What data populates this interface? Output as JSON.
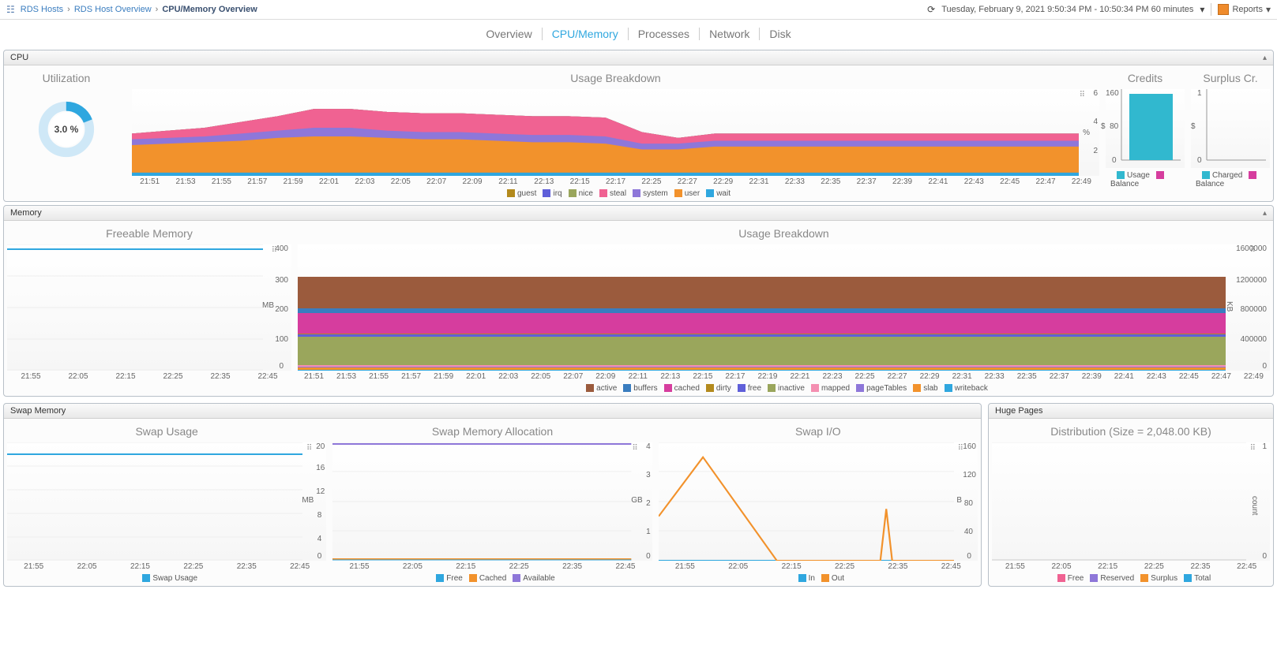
{
  "breadcrumbs": {
    "items": [
      {
        "label": "RDS Hosts",
        "link": true
      },
      {
        "label": "RDS Host Overview",
        "link": true
      },
      {
        "label": "CPU/Memory Overview",
        "link": false,
        "current": true
      }
    ]
  },
  "time_range": {
    "text": "Tuesday, February 9, 2021 9:50:34 PM - 10:50:34 PM 60 minutes"
  },
  "reports_label": "Reports",
  "tabs": [
    "Overview",
    "CPU/Memory",
    "Processes",
    "Network",
    "Disk"
  ],
  "active_tab": "CPU/Memory",
  "cpu": {
    "panel_title": "CPU",
    "utilization_label": "Utilization",
    "utilization_pct": "3.0 %",
    "usage_title": "Usage Breakdown",
    "usage_x_ticks": [
      "21:51",
      "21:53",
      "21:55",
      "21:57",
      "21:59",
      "22:01",
      "22:03",
      "22:05",
      "22:07",
      "22:09",
      "22:11",
      "22:13",
      "22:15",
      "22:17",
      "22:25",
      "22:27",
      "22:29",
      "22:31",
      "22:33",
      "22:35",
      "22:37",
      "22:39",
      "22:41",
      "22:43",
      "22:45",
      "22:47",
      "22:49"
    ],
    "usage_y_ticks": [
      0,
      2,
      4,
      6
    ],
    "usage_y_unit": "%",
    "usage_series": [
      {
        "name": "guest",
        "color": "#b38a1d",
        "values": [
          0,
          0,
          0,
          0,
          0,
          0,
          0,
          0,
          0,
          0,
          0,
          0,
          0,
          0,
          0,
          0,
          0,
          0,
          0,
          0,
          0,
          0,
          0,
          0,
          0,
          0,
          0
        ]
      },
      {
        "name": "irq",
        "color": "#5f5fd9",
        "values": [
          0,
          0,
          0,
          0,
          0,
          0,
          0,
          0,
          0,
          0,
          0,
          0,
          0,
          0,
          0,
          0,
          0,
          0,
          0,
          0,
          0,
          0,
          0,
          0,
          0,
          0,
          0
        ]
      },
      {
        "name": "nice",
        "color": "#9aa65c",
        "values": [
          0,
          0,
          0,
          0,
          0,
          0,
          0,
          0,
          0,
          0,
          0,
          0,
          0,
          0,
          0,
          0,
          0,
          0,
          0,
          0,
          0,
          0,
          0,
          0,
          0,
          0,
          0
        ]
      },
      {
        "name": "steal",
        "color": "#f06292",
        "values": [
          0.4,
          0.5,
          0.6,
          0.8,
          1.0,
          1.3,
          1.3,
          1.3,
          1.3,
          1.3,
          1.3,
          1.3,
          1.3,
          1.3,
          0.8,
          0.4,
          0.5,
          0.5,
          0.5,
          0.5,
          0.5,
          0.5,
          0.5,
          0.5,
          0.5,
          0.5,
          0.5
        ]
      },
      {
        "name": "system",
        "color": "#8e77d9",
        "values": [
          0.4,
          0.4,
          0.4,
          0.5,
          0.5,
          0.6,
          0.6,
          0.5,
          0.5,
          0.5,
          0.5,
          0.5,
          0.5,
          0.5,
          0.4,
          0.4,
          0.4,
          0.4,
          0.4,
          0.4,
          0.4,
          0.4,
          0.4,
          0.4,
          0.4,
          0.4,
          0.4
        ]
      },
      {
        "name": "user",
        "color": "#f2922c",
        "values": [
          1.9,
          2.0,
          2.1,
          2.2,
          2.4,
          2.5,
          2.5,
          2.4,
          2.3,
          2.3,
          2.2,
          2.1,
          2.1,
          2.0,
          1.6,
          1.6,
          1.8,
          1.8,
          1.8,
          1.8,
          1.8,
          1.8,
          1.8,
          1.8,
          1.8,
          1.8,
          1.8
        ]
      },
      {
        "name": "wait",
        "color": "#2fa7df",
        "values": [
          0.2,
          0.2,
          0.2,
          0.2,
          0.2,
          0.2,
          0.2,
          0.2,
          0.2,
          0.2,
          0.2,
          0.2,
          0.2,
          0.2,
          0.2,
          0.2,
          0.2,
          0.2,
          0.2,
          0.2,
          0.2,
          0.2,
          0.2,
          0.2,
          0.2,
          0.2,
          0.2
        ]
      }
    ],
    "credits": {
      "title": "Credits",
      "y_unit": "$",
      "y_ticks": [
        0,
        80,
        160
      ],
      "bars": [
        {
          "label": "Usage",
          "color": "#31b8cf",
          "value": 150
        }
      ],
      "legend": [
        {
          "label": "Usage",
          "color": "#31b8cf"
        },
        {
          "label": "Balance",
          "color": "#d63d9e"
        }
      ]
    },
    "surplus": {
      "title": "Surplus Cr.",
      "y_unit": "$",
      "y_ticks": [
        0,
        1
      ],
      "legend": [
        {
          "label": "Charged",
          "color": "#31b8cf"
        },
        {
          "label": "Balance",
          "color": "#d63d9e"
        }
      ]
    }
  },
  "memory": {
    "panel_title": "Memory",
    "free": {
      "title": "Freeable Memory",
      "y_ticks": [
        0,
        100,
        200,
        300,
        400
      ],
      "y_unit": "MB",
      "x_ticks": [
        "21:55",
        "22:05",
        "22:15",
        "22:25",
        "22:35",
        "22:45"
      ],
      "value": 385,
      "color": "#2fa7df"
    },
    "usage": {
      "title": "Usage Breakdown",
      "y_ticks": [
        0,
        400000,
        800000,
        1200000,
        1600000
      ],
      "y_unit": "KB",
      "x_ticks": [
        "21:51",
        "21:53",
        "21:55",
        "21:57",
        "21:59",
        "22:01",
        "22:03",
        "22:05",
        "22:07",
        "22:09",
        "22:11",
        "22:13",
        "22:15",
        "22:17",
        "22:19",
        "22:21",
        "22:23",
        "22:25",
        "22:27",
        "22:29",
        "22:31",
        "22:33",
        "22:35",
        "22:37",
        "22:39",
        "22:41",
        "22:43",
        "22:45",
        "22:47",
        "22:49"
      ],
      "series": [
        {
          "name": "active",
          "color": "#9b5b3d",
          "value": 400000
        },
        {
          "name": "buffers",
          "color": "#3a7dbf",
          "value": 60000
        },
        {
          "name": "cached",
          "color": "#d63d9e",
          "value": 260000
        },
        {
          "name": "dirty",
          "color": "#b38a1d",
          "value": 10000
        },
        {
          "name": "free",
          "color": "#5f5fd9",
          "value": 30000
        },
        {
          "name": "inactive",
          "color": "#9aa65c",
          "value": 360000
        },
        {
          "name": "mapped",
          "color": "#f48fb1",
          "value": 20000
        },
        {
          "name": "pageTables",
          "color": "#8e77d9",
          "value": 10000
        },
        {
          "name": "slab",
          "color": "#f2922c",
          "value": 30000
        },
        {
          "name": "writeback",
          "color": "#2fa7df",
          "value": 10000
        }
      ]
    }
  },
  "swap": {
    "panel_title": "Swap Memory",
    "usage": {
      "title": "Swap Usage",
      "y_ticks": [
        0,
        4,
        8,
        12,
        16,
        20
      ],
      "y_unit": "MB",
      "x_ticks": [
        "21:55",
        "22:05",
        "22:15",
        "22:25",
        "22:35",
        "22:45"
      ],
      "value": 18,
      "color": "#2fa7df",
      "legend": [
        {
          "label": "Swap Usage",
          "color": "#2fa7df"
        }
      ]
    },
    "alloc": {
      "title": "Swap Memory Allocation",
      "y_ticks": [
        0,
        1,
        2,
        3,
        4
      ],
      "y_unit": "GB",
      "x_ticks": [
        "21:55",
        "22:05",
        "22:15",
        "22:25",
        "22:35",
        "22:45"
      ],
      "series": [
        {
          "name": "Free",
          "color": "#2fa7df",
          "value": 0
        },
        {
          "name": "Cached",
          "color": "#f2922c",
          "value": 0
        },
        {
          "name": "Available",
          "color": "#8e77d9",
          "value": 4
        }
      ],
      "legend": [
        {
          "label": "Free",
          "color": "#2fa7df"
        },
        {
          "label": "Cached",
          "color": "#f2922c"
        },
        {
          "label": "Available",
          "color": "#8e77d9"
        }
      ]
    },
    "io": {
      "title": "Swap I/O",
      "y_ticks": [
        0,
        40,
        80,
        120,
        160
      ],
      "y_unit": "B",
      "x_ticks": [
        "21:55",
        "22:05",
        "22:15",
        "22:25",
        "22:35",
        "22:45"
      ],
      "in_color": "#2fa7df",
      "out_color": "#f2922c",
      "out_points": [
        [
          0,
          60
        ],
        [
          15,
          140
        ],
        [
          40,
          0
        ],
        [
          75,
          0
        ],
        [
          77,
          70
        ],
        [
          79,
          0
        ],
        [
          100,
          0
        ]
      ],
      "in_points": [
        [
          0,
          0
        ],
        [
          100,
          0
        ]
      ],
      "legend": [
        {
          "label": "In",
          "color": "#2fa7df"
        },
        {
          "label": "Out",
          "color": "#f2922c"
        }
      ]
    }
  },
  "huge": {
    "panel_title": "Huge Pages",
    "title": "Distribution (Size = 2,048.00 KB)",
    "y_ticks": [
      0,
      1
    ],
    "y_unit": "count",
    "x_ticks": [
      "21:55",
      "22:05",
      "22:15",
      "22:25",
      "22:35",
      "22:45"
    ],
    "legend": [
      {
        "label": "Free",
        "color": "#f06292"
      },
      {
        "label": "Reserved",
        "color": "#8e77d9"
      },
      {
        "label": "Surplus",
        "color": "#f2922c"
      },
      {
        "label": "Total",
        "color": "#2fa7df"
      }
    ]
  }
}
